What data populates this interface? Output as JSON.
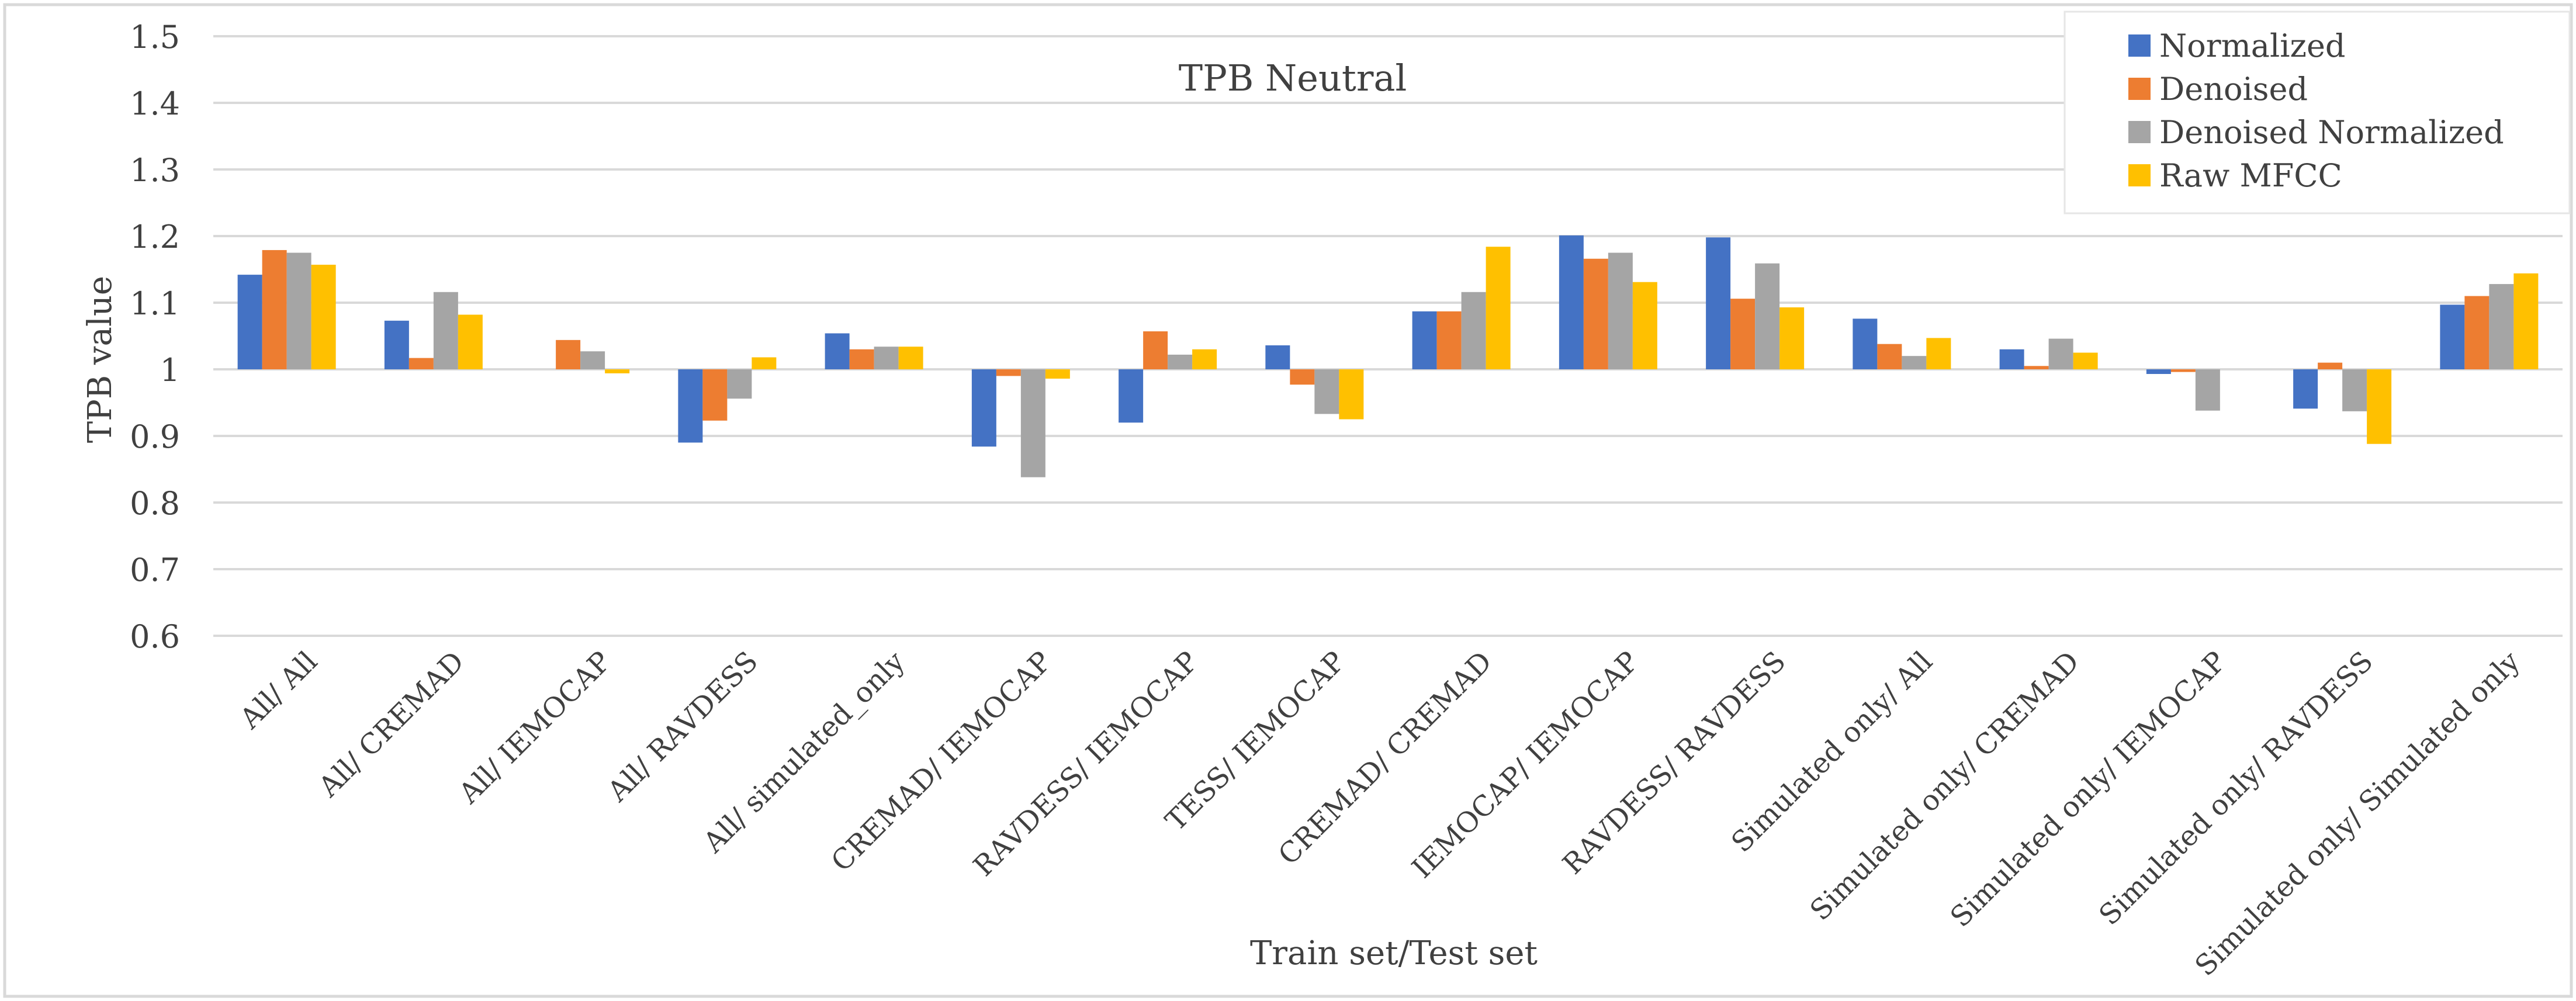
{
  "chart_data": {
    "type": "bar",
    "title": "TPB Neutral",
    "xlabel": "Train set/Test set",
    "ylabel": "TPB value",
    "ylim": [
      0.6,
      1.5
    ],
    "baseline": 1.0,
    "yticks": [
      0.6,
      0.7,
      0.8,
      0.9,
      1,
      1.1,
      1.2,
      1.3,
      1.4,
      1.5
    ],
    "ytick_labels": [
      "0.6",
      "0.7",
      "0.8",
      "0.9",
      "1",
      "1.1",
      "1.2",
      "1.3",
      "1.4",
      "1.5"
    ],
    "grid": true,
    "legend_position": "top-right",
    "categories": [
      "All/ All",
      "All/ CREMAD",
      "All/ IEMOCAP",
      "All/ RAVDESS",
      "All/ simulated_only",
      "CREMAD/ IEMOCAP",
      "RAVDESS/ IEMOCAP",
      "TESS/ IEMOCAP",
      "CREMAD/ CREMAD",
      "IEMOCAP/ IEMOCAP",
      "RAVDESS/ RAVDESS",
      "Simulated only/ All",
      "Simulated only/ CREMAD",
      "Simulated only/ IEMOCAP",
      "Simulated only/ RAVDESS",
      "Simulated only/ Simulated only"
    ],
    "series": [
      {
        "name": "Normalized",
        "color": "#4472C4",
        "values": [
          1.142,
          1.073,
          1.0,
          0.89,
          1.054,
          0.884,
          0.92,
          1.036,
          1.087,
          1.201,
          1.198,
          1.076,
          1.03,
          0.993,
          0.941,
          1.097
        ]
      },
      {
        "name": "Denoised",
        "color": "#ED7D31",
        "values": [
          1.179,
          1.017,
          1.044,
          0.923,
          1.03,
          0.99,
          1.057,
          0.977,
          1.087,
          1.166,
          1.106,
          1.038,
          1.005,
          0.996,
          1.01,
          1.11
        ]
      },
      {
        "name": "Denoised Normalized",
        "color": "#A5A5A5",
        "values": [
          1.175,
          1.116,
          1.027,
          0.956,
          1.034,
          0.838,
          1.022,
          0.933,
          1.116,
          1.175,
          1.159,
          1.02,
          1.046,
          0.938,
          0.937,
          1.128
        ]
      },
      {
        "name": "Raw MFCC",
        "color": "#FFC000",
        "values": [
          1.157,
          1.082,
          0.994,
          1.018,
          1.034,
          0.986,
          1.03,
          0.925,
          1.184,
          1.131,
          1.093,
          1.047,
          1.025,
          1.0,
          0.888,
          1.144
        ]
      }
    ]
  },
  "colors": {
    "grid": "#D9D9D9",
    "text": "#404040",
    "border": "#D9D9D9"
  }
}
